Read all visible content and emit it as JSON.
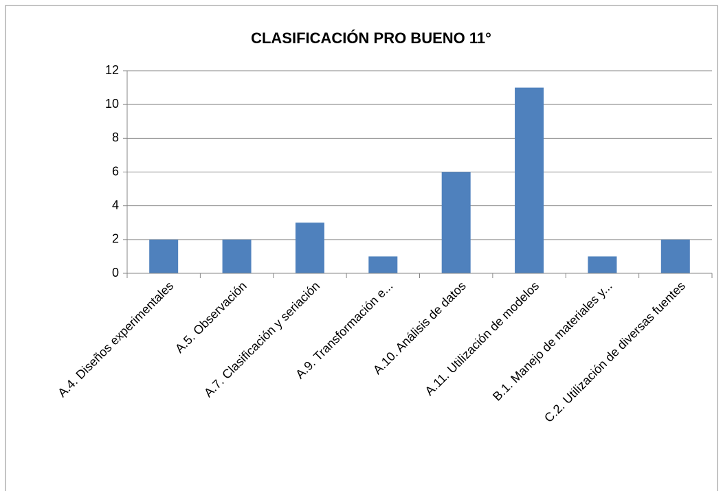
{
  "chart_data": {
    "type": "bar",
    "title": "CLASIFICACIÓN PRO BUENO 11°",
    "categories": [
      "A.4. Diseños experimentales",
      "A.5. Observación",
      "A.7. Clasificación y seriación",
      "A.9. Transformación e...",
      "A.10. Análisis de datos",
      "A.11. Utilización de modelos",
      "B.1. Manejo de materiales y...",
      "C.2. Utilización de diversas fuentes"
    ],
    "values": [
      2,
      2,
      3,
      1,
      6,
      11,
      1,
      2
    ],
    "color": "#4f81bd",
    "ylim": [
      0,
      12
    ],
    "yticks": [
      0,
      2,
      4,
      6,
      8,
      10,
      12
    ],
    "grid": true
  }
}
